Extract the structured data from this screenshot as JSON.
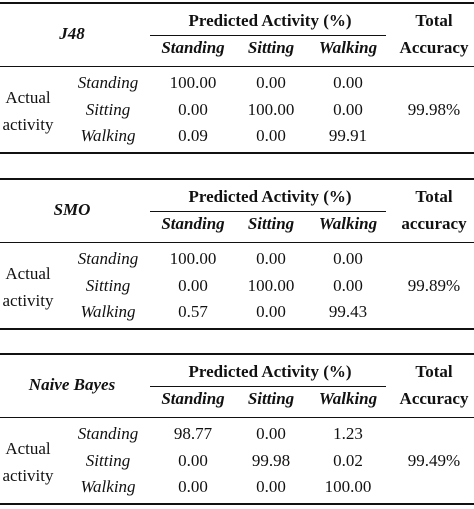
{
  "tables": [
    {
      "classifier": "J48",
      "predicted_header": "Predicted Activity (%)",
      "total_line1": "Total",
      "total_line2": "Accuracy",
      "columns": [
        "Standing",
        "Sitting",
        "Walking"
      ],
      "actual_line1": "Actual",
      "actual_line2": "activity",
      "rows": [
        {
          "label": "Standing",
          "values": [
            "100.00",
            "0.00",
            "0.00"
          ]
        },
        {
          "label": "Sitting",
          "values": [
            "0.00",
            "100.00",
            "0.00"
          ]
        },
        {
          "label": "Walking",
          "values": [
            "0.09",
            "0.00",
            "99.91"
          ]
        }
      ],
      "total": "99.98%"
    },
    {
      "classifier": "SMO",
      "predicted_header": "Predicted Activity (%)",
      "total_line1": "Total",
      "total_line2": "accuracy",
      "columns": [
        "Standing",
        "Sitting",
        "Walking"
      ],
      "actual_line1": "Actual",
      "actual_line2": "activity",
      "rows": [
        {
          "label": "Standing",
          "values": [
            "100.00",
            "0.00",
            "0.00"
          ]
        },
        {
          "label": "Sitting",
          "values": [
            "0.00",
            "100.00",
            "0.00"
          ]
        },
        {
          "label": "Walking",
          "values": [
            "0.57",
            "0.00",
            "99.43"
          ]
        }
      ],
      "total": "99.89%"
    },
    {
      "classifier": "Naive Bayes",
      "predicted_header": "Predicted Activity (%)",
      "total_line1": "Total",
      "total_line2": "Accuracy",
      "columns": [
        "Standing",
        "Sitting",
        "Walking"
      ],
      "actual_line1": "Actual",
      "actual_line2": "activity",
      "rows": [
        {
          "label": "Standing",
          "values": [
            "98.77",
            "0.00",
            "1.23"
          ]
        },
        {
          "label": "Sitting",
          "values": [
            "0.00",
            "99.98",
            "0.02"
          ]
        },
        {
          "label": "Walking",
          "values": [
            "0.00",
            "0.00",
            "100.00"
          ]
        }
      ],
      "total": "99.49%"
    }
  ]
}
